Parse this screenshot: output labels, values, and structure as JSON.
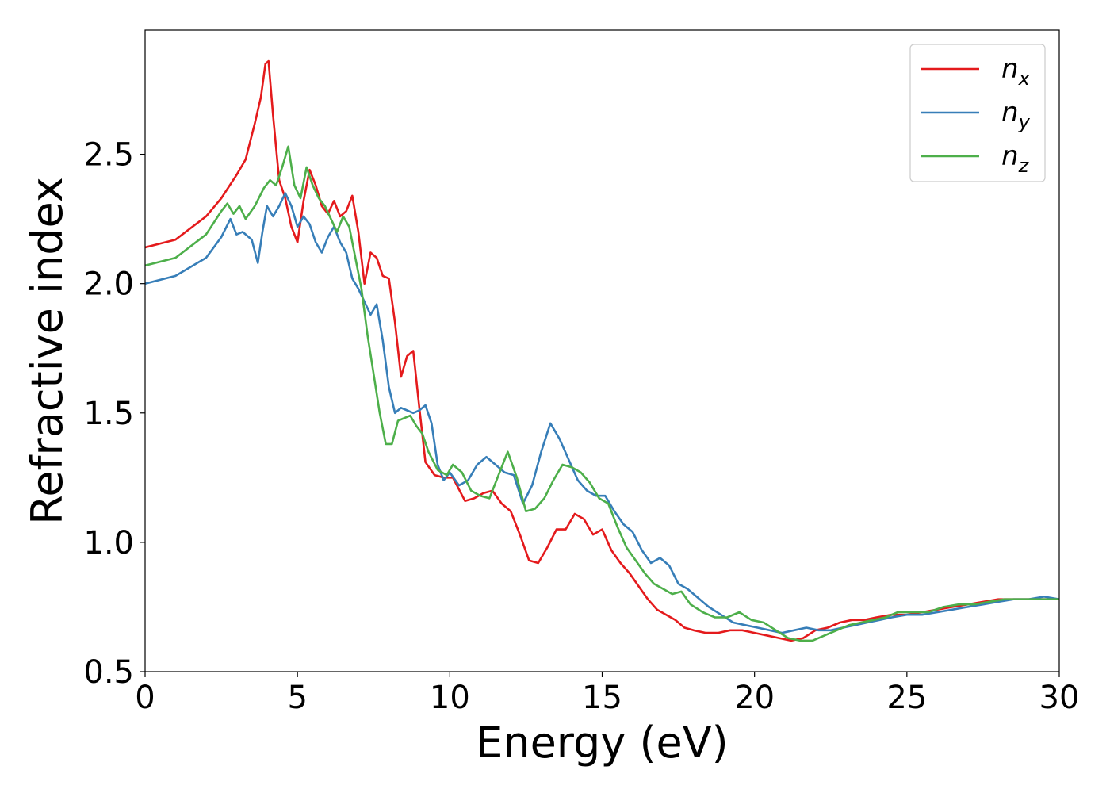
{
  "chart_data": {
    "type": "line",
    "title": "",
    "xlabel": "Energy (eV)",
    "ylabel": "Refractive index",
    "xlim": [
      0,
      30
    ],
    "ylim": [
      0.5,
      2.98
    ],
    "xticks": [
      0,
      5,
      10,
      15,
      20,
      25,
      30
    ],
    "xtick_labels": [
      "0",
      "5",
      "10",
      "15",
      "20",
      "25",
      "30"
    ],
    "yticks": [
      0.5,
      1.0,
      1.5,
      2.0,
      2.5
    ],
    "ytick_labels": [
      "0.5",
      "1.0",
      "1.5",
      "2.0",
      "2.5"
    ],
    "grid": false,
    "legend_position": "top-right",
    "series": [
      {
        "name": "n",
        "subscript": "x",
        "color": "#e41a1c",
        "x": [
          0,
          1,
          2,
          2.5,
          3,
          3.3,
          3.6,
          3.8,
          3.95,
          4.05,
          4.2,
          4.4,
          4.6,
          4.8,
          5.0,
          5.2,
          5.4,
          5.6,
          5.8,
          6.0,
          6.2,
          6.4,
          6.6,
          6.8,
          7.0,
          7.2,
          7.4,
          7.6,
          7.8,
          8.0,
          8.2,
          8.4,
          8.6,
          8.8,
          9.0,
          9.2,
          9.5,
          9.8,
          10.1,
          10.5,
          10.8,
          11.1,
          11.4,
          11.7,
          12.0,
          12.3,
          12.6,
          12.9,
          13.2,
          13.5,
          13.8,
          14.1,
          14.4,
          14.7,
          15.0,
          15.3,
          15.6,
          15.9,
          16.2,
          16.5,
          16.8,
          17.1,
          17.4,
          17.7,
          18.0,
          18.4,
          18.8,
          19.2,
          19.6,
          20.0,
          20.4,
          20.8,
          21.2,
          21.6,
          22.0,
          22.4,
          22.8,
          23.2,
          23.6,
          24.0,
          24.5,
          25.0,
          25.5,
          26.0,
          26.5,
          27.0,
          27.5,
          28.0,
          28.5,
          29.0,
          29.5,
          30.0
        ],
        "y": [
          2.14,
          2.17,
          2.26,
          2.33,
          2.42,
          2.48,
          2.62,
          2.72,
          2.85,
          2.86,
          2.65,
          2.4,
          2.33,
          2.22,
          2.16,
          2.32,
          2.44,
          2.38,
          2.3,
          2.27,
          2.32,
          2.26,
          2.28,
          2.34,
          2.2,
          2.0,
          2.12,
          2.1,
          2.03,
          2.02,
          1.85,
          1.64,
          1.72,
          1.74,
          1.52,
          1.31,
          1.26,
          1.25,
          1.25,
          1.16,
          1.17,
          1.19,
          1.2,
          1.15,
          1.12,
          1.03,
          0.93,
          0.92,
          0.98,
          1.05,
          1.05,
          1.11,
          1.09,
          1.03,
          1.05,
          0.97,
          0.92,
          0.88,
          0.83,
          0.78,
          0.74,
          0.72,
          0.7,
          0.67,
          0.66,
          0.65,
          0.65,
          0.66,
          0.66,
          0.65,
          0.64,
          0.63,
          0.62,
          0.63,
          0.66,
          0.67,
          0.69,
          0.7,
          0.7,
          0.71,
          0.72,
          0.72,
          0.73,
          0.74,
          0.75,
          0.76,
          0.77,
          0.78,
          0.78,
          0.78,
          0.78,
          0.78
        ]
      },
      {
        "name": "n",
        "subscript": "y",
        "color": "#377eb8",
        "x": [
          0,
          1,
          2,
          2.5,
          2.8,
          3.0,
          3.2,
          3.5,
          3.7,
          3.85,
          4.0,
          4.2,
          4.4,
          4.6,
          4.8,
          5.0,
          5.2,
          5.4,
          5.6,
          5.8,
          6.0,
          6.2,
          6.4,
          6.6,
          6.8,
          7.0,
          7.2,
          7.4,
          7.6,
          7.8,
          8.0,
          8.2,
          8.4,
          8.6,
          8.8,
          9.0,
          9.2,
          9.4,
          9.6,
          9.8,
          10.0,
          10.3,
          10.6,
          10.9,
          11.2,
          11.5,
          11.8,
          12.1,
          12.4,
          12.7,
          13.0,
          13.3,
          13.6,
          13.9,
          14.2,
          14.5,
          14.8,
          15.1,
          15.4,
          15.7,
          16.0,
          16.3,
          16.6,
          16.9,
          17.2,
          17.5,
          17.8,
          18.1,
          18.5,
          18.9,
          19.3,
          19.7,
          20.1,
          20.5,
          20.9,
          21.3,
          21.7,
          22.1,
          22.5,
          22.9,
          23.3,
          23.7,
          24.1,
          24.5,
          25.0,
          25.5,
          26.0,
          26.5,
          27.0,
          27.5,
          28.0,
          28.5,
          29.0,
          29.5,
          30.0
        ],
        "y": [
          2.0,
          2.03,
          2.1,
          2.18,
          2.25,
          2.19,
          2.2,
          2.17,
          2.08,
          2.2,
          2.3,
          2.26,
          2.3,
          2.35,
          2.3,
          2.22,
          2.26,
          2.23,
          2.16,
          2.12,
          2.18,
          2.22,
          2.16,
          2.12,
          2.02,
          1.98,
          1.93,
          1.88,
          1.92,
          1.78,
          1.6,
          1.5,
          1.52,
          1.51,
          1.5,
          1.51,
          1.53,
          1.46,
          1.3,
          1.24,
          1.27,
          1.22,
          1.24,
          1.3,
          1.33,
          1.3,
          1.27,
          1.26,
          1.15,
          1.22,
          1.35,
          1.46,
          1.4,
          1.32,
          1.24,
          1.2,
          1.18,
          1.18,
          1.12,
          1.07,
          1.04,
          0.97,
          0.92,
          0.94,
          0.91,
          0.84,
          0.82,
          0.79,
          0.75,
          0.72,
          0.69,
          0.68,
          0.67,
          0.66,
          0.65,
          0.66,
          0.67,
          0.66,
          0.66,
          0.67,
          0.68,
          0.69,
          0.7,
          0.71,
          0.72,
          0.72,
          0.73,
          0.74,
          0.75,
          0.76,
          0.77,
          0.78,
          0.78,
          0.79,
          0.78
        ]
      },
      {
        "name": "n",
        "subscript": "z",
        "color": "#4daf4a",
        "x": [
          0,
          1,
          2,
          2.5,
          2.7,
          2.9,
          3.1,
          3.3,
          3.6,
          3.9,
          4.1,
          4.3,
          4.5,
          4.7,
          4.9,
          5.1,
          5.3,
          5.5,
          5.7,
          5.9,
          6.1,
          6.3,
          6.5,
          6.7,
          6.9,
          7.1,
          7.3,
          7.5,
          7.7,
          7.9,
          8.1,
          8.3,
          8.5,
          8.7,
          8.9,
          9.1,
          9.3,
          9.6,
          9.9,
          10.1,
          10.4,
          10.7,
          11.0,
          11.3,
          11.6,
          11.9,
          12.2,
          12.5,
          12.8,
          13.1,
          13.4,
          13.7,
          14.0,
          14.3,
          14.6,
          14.9,
          15.2,
          15.5,
          15.8,
          16.1,
          16.4,
          16.7,
          17.0,
          17.3,
          17.6,
          17.9,
          18.3,
          18.7,
          19.1,
          19.5,
          19.9,
          20.3,
          20.7,
          21.1,
          21.5,
          21.9,
          22.3,
          22.7,
          23.1,
          23.5,
          23.9,
          24.3,
          24.7,
          25.2,
          25.7,
          26.2,
          26.7,
          27.2,
          27.7,
          28.2,
          28.7,
          29.2,
          29.7,
          30.0
        ],
        "y": [
          2.07,
          2.1,
          2.19,
          2.28,
          2.31,
          2.27,
          2.3,
          2.25,
          2.3,
          2.37,
          2.4,
          2.38,
          2.45,
          2.53,
          2.38,
          2.33,
          2.45,
          2.38,
          2.33,
          2.3,
          2.25,
          2.2,
          2.26,
          2.22,
          2.1,
          1.98,
          1.8,
          1.65,
          1.5,
          1.38,
          1.38,
          1.47,
          1.48,
          1.49,
          1.45,
          1.42,
          1.35,
          1.28,
          1.26,
          1.3,
          1.27,
          1.2,
          1.18,
          1.17,
          1.26,
          1.35,
          1.25,
          1.12,
          1.13,
          1.17,
          1.24,
          1.3,
          1.29,
          1.27,
          1.23,
          1.17,
          1.15,
          1.06,
          0.98,
          0.93,
          0.88,
          0.84,
          0.82,
          0.8,
          0.81,
          0.76,
          0.73,
          0.71,
          0.71,
          0.73,
          0.7,
          0.69,
          0.66,
          0.63,
          0.62,
          0.62,
          0.64,
          0.66,
          0.68,
          0.69,
          0.7,
          0.71,
          0.73,
          0.73,
          0.73,
          0.75,
          0.76,
          0.76,
          0.77,
          0.78,
          0.78,
          0.78,
          0.78,
          0.78
        ]
      }
    ]
  }
}
